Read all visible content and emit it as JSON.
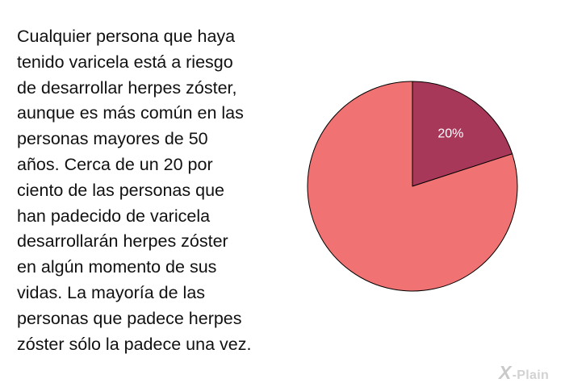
{
  "text_lines": [
    "Cualquier persona que haya",
    "tenido varicela está a riesgo",
    "de desarrollar herpes zóster,",
    "aunque es más común en las",
    "personas mayores de 50",
    "años.  Cerca de un 20 por",
    "ciento de las personas que",
    "han padecido de varicela",
    "desarrollarán herpes zóster",
    "en algún momento de sus",
    "vidas.  La mayoría de las",
    "personas que padece herpes",
    "zóster sólo la padece una vez."
  ],
  "logo": {
    "symbol": "X",
    "text": "-Plain"
  },
  "chart_data": {
    "type": "pie",
    "values": [
      20,
      80
    ],
    "labels": [
      "20%",
      ""
    ],
    "colors": [
      "#a8385a",
      "#f07272"
    ],
    "start_angle_deg": 0,
    "direction": "clockwise"
  }
}
